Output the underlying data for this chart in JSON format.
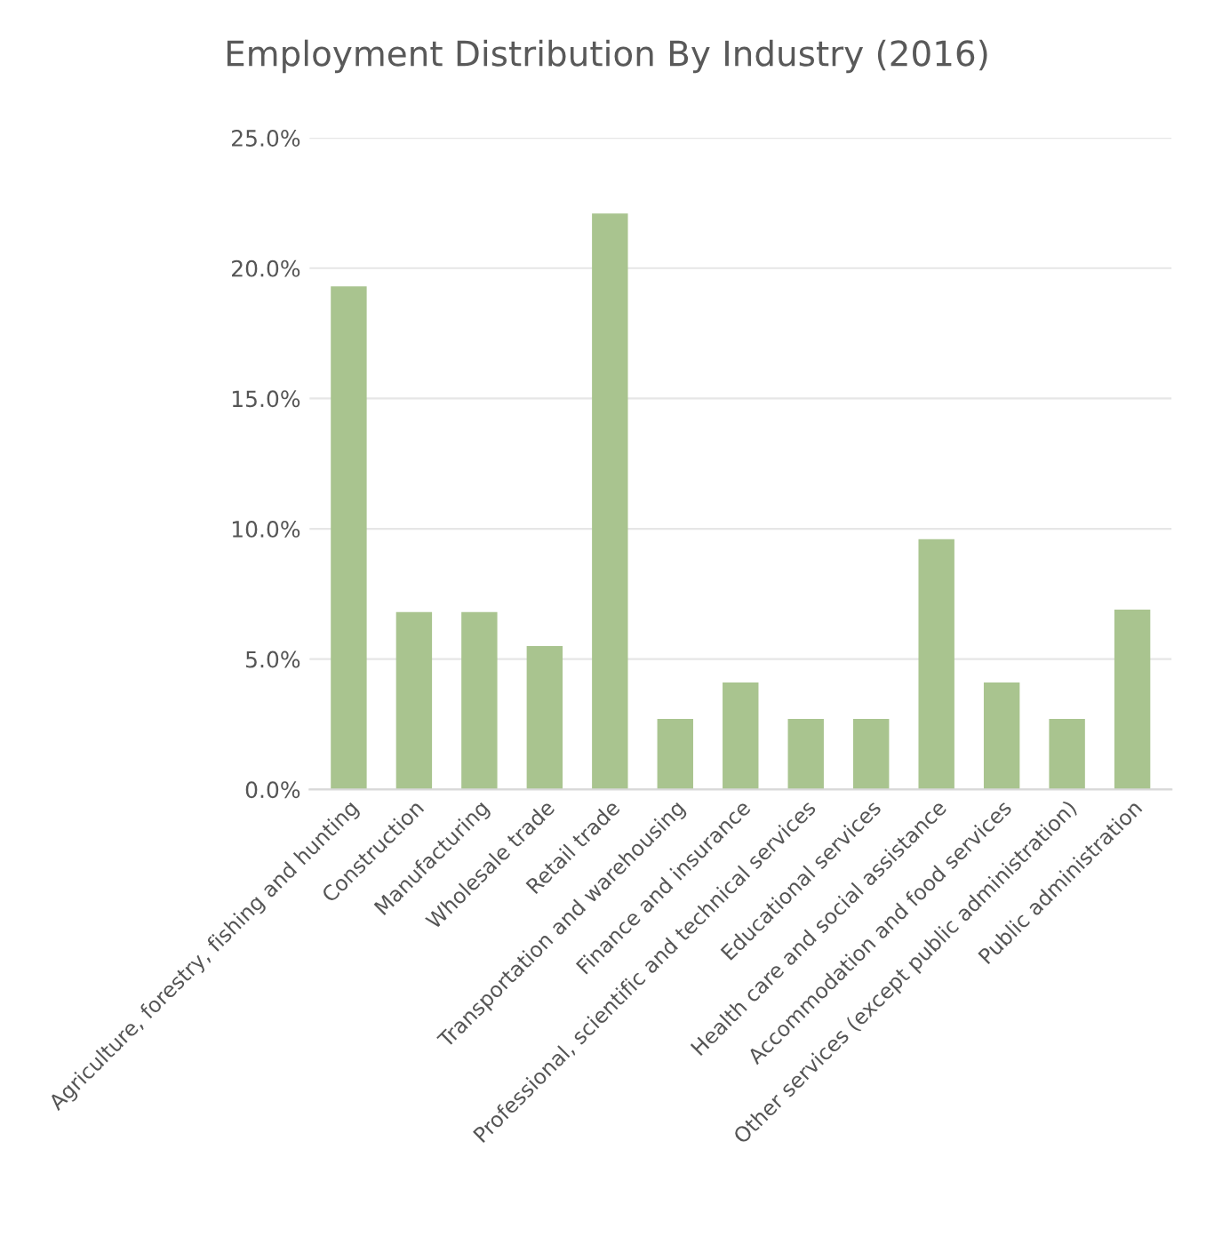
{
  "chart_data": {
    "type": "bar",
    "title": "Employment Distribution By Industry (2016)",
    "categories": [
      "Agriculture, forestry, fishing and hunting",
      "Construction",
      "Manufacturing",
      "Wholesale trade",
      "Retail trade",
      "Transportation and warehousing",
      "Finance and insurance",
      "Professional, scientific and technical services",
      "Educational services",
      "Health care and social assistance",
      "Accommodation and food services",
      "Other services (except public administration)",
      "Public administration"
    ],
    "values": [
      19.3,
      6.8,
      6.8,
      5.5,
      22.1,
      2.7,
      4.1,
      2.7,
      2.7,
      9.6,
      4.1,
      2.7,
      6.9
    ],
    "color": "#a9c48f",
    "ylim": [
      0,
      25
    ],
    "yticks": [
      {
        "value": 0,
        "label": "0.0%"
      },
      {
        "value": 5,
        "label": "5.0%"
      },
      {
        "value": 10,
        "label": "10.0%"
      },
      {
        "value": 15,
        "label": "15.0%"
      },
      {
        "value": 20,
        "label": "20.0%"
      },
      {
        "value": 25,
        "label": "25.0%"
      }
    ],
    "grid": "y"
  }
}
